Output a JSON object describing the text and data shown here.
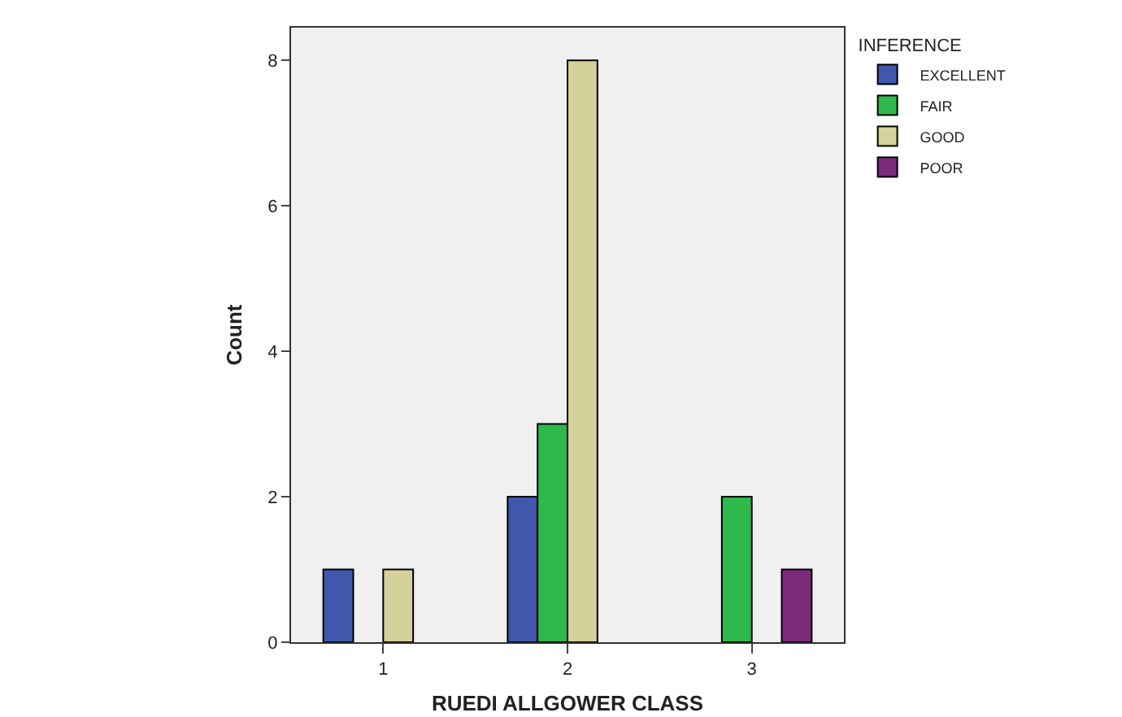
{
  "chart_data": {
    "type": "bar",
    "xlabel": "RUEDI ALLGOWER CLASS",
    "ylabel": "Count",
    "legend_title": "INFERENCE",
    "legend": "top right",
    "grid": false,
    "categories": [
      "1",
      "2",
      "3"
    ],
    "ylim": [
      0,
      8.45
    ],
    "yticks": [
      0,
      2,
      4,
      6,
      8
    ],
    "series": [
      {
        "name": "EXCELLENT",
        "color": "#3f58ab",
        "values": [
          1,
          2,
          null
        ]
      },
      {
        "name": "FAIR",
        "color": "#2fb84c",
        "values": [
          null,
          3,
          2
        ]
      },
      {
        "name": "GOOD",
        "color": "#d5d19a",
        "values": [
          1,
          8,
          null
        ]
      },
      {
        "name": "POOR",
        "color": "#7c2a7c",
        "values": [
          null,
          null,
          1
        ]
      }
    ]
  }
}
